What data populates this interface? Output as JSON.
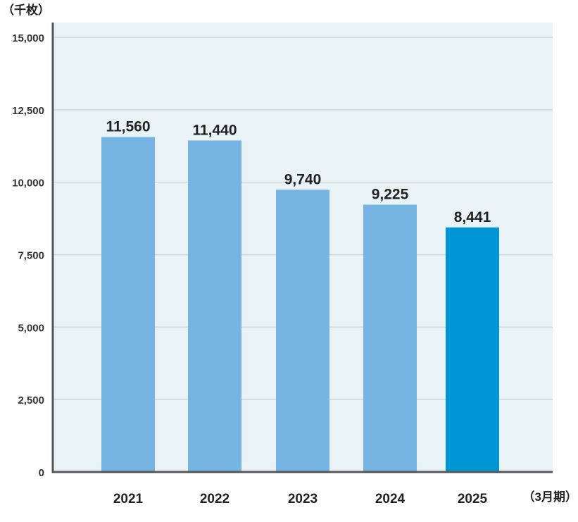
{
  "chart_data": {
    "type": "bar",
    "unit_label": "（千枚）",
    "period_label": "（3月期）",
    "categories": [
      "2021",
      "2022",
      "2023",
      "2024",
      "2025"
    ],
    "values": [
      11560,
      11440,
      9740,
      9225,
      8441
    ],
    "value_labels": [
      "11,560",
      "11,440",
      "9,740",
      "9,225",
      "8,441"
    ],
    "ylim": [
      0,
      15000
    ],
    "yticks": [
      0,
      2500,
      5000,
      7500,
      10000,
      12500,
      15000
    ],
    "ytick_labels": [
      "0",
      "2,500",
      "5,000",
      "7,500",
      "10,000",
      "12,500",
      "15,000"
    ],
    "grid": true,
    "colors": {
      "bar": "#76b4e3",
      "highlight": "#0096d6",
      "plot_bg": "#e9f3f5",
      "grid": "#cfd6da",
      "axis": "#555555"
    },
    "highlight_index": 4
  }
}
